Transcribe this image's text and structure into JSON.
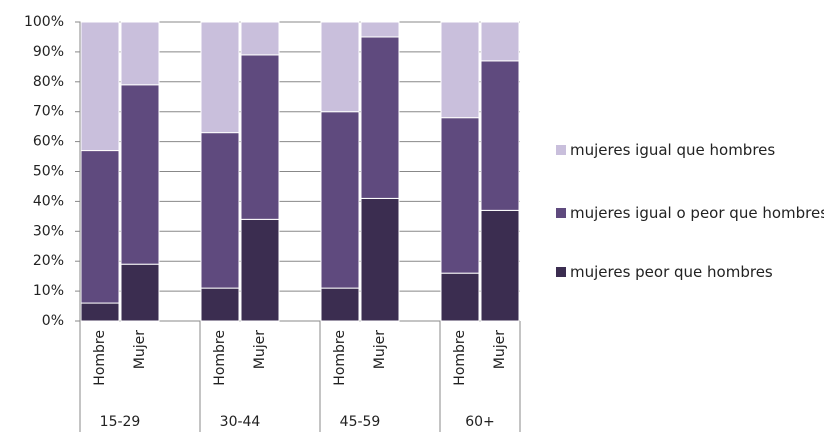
{
  "chart_data": {
    "type": "stacked-bar",
    "categories": [
      "Hombre",
      "Mujer",
      null,
      "Hombre",
      "Mujer",
      null,
      "Hombre",
      "Mujer",
      null,
      "Hombre",
      "Mujer"
    ],
    "groups": [
      "15-29",
      "30-44",
      "45-59",
      "60+"
    ],
    "series": [
      {
        "name": "mujeres peor que hombres",
        "color": "#3b2d50",
        "values": [
          6,
          19,
          null,
          11,
          34,
          null,
          11,
          41,
          null,
          16,
          37
        ]
      },
      {
        "name": "mujeres igual o peor que hombres",
        "color": "#5f4a7e",
        "values": [
          51,
          60,
          null,
          52,
          55,
          null,
          59,
          54,
          null,
          52,
          50
        ]
      },
      {
        "name": "mujeres igual que hombres",
        "color": "#c9bfdc",
        "values": [
          43,
          21,
          null,
          37,
          11,
          null,
          30,
          5,
          null,
          32,
          13
        ]
      }
    ],
    "ylim": [
      0,
      100
    ],
    "yticks": [
      {
        "value": 0,
        "label": "0%"
      },
      {
        "value": 10,
        "label": "10%"
      },
      {
        "value": 20,
        "label": "20%"
      },
      {
        "value": 30,
        "label": "30%"
      },
      {
        "value": 40,
        "label": "40%"
      },
      {
        "value": 50,
        "label": "50%"
      },
      {
        "value": 60,
        "label": "60%"
      },
      {
        "value": 70,
        "label": "70%"
      },
      {
        "value": 80,
        "label": "80%"
      },
      {
        "value": 90,
        "label": "90%"
      },
      {
        "value": 100,
        "label": "100%"
      }
    ],
    "grid": true
  }
}
